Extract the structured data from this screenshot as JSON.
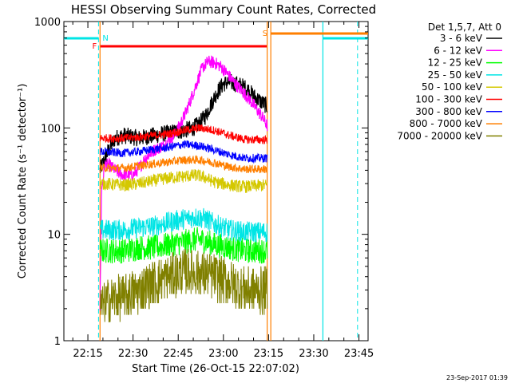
{
  "chart_data": {
    "type": "line",
    "title": "HESSI Observing Summary Count Rates, Corrected",
    "xlabel": "Start Time (26-Oct-15 22:07:02)",
    "ylabel": "Corrected Count Rate (s⁻¹ detector⁻¹)",
    "y_scale": "log",
    "ylim": [
      1,
      1000
    ],
    "x_unit": "minutes after 22:07:02 UT",
    "xlim": [
      0,
      101
    ],
    "x_tick_labels": [
      "22:15",
      "22:30",
      "22:45",
      "23:00",
      "23:15",
      "23:30",
      "23:45"
    ],
    "y_tick_labels": [
      "1",
      "10",
      "100",
      "1000"
    ],
    "legend_title": "Det 1,5,7, Att 0",
    "legend_position": "right, outside plot",
    "footer_timestamp": "23-Sep-2017 01:39",
    "data_interval": [
      12.0,
      67.5
    ],
    "flags": {
      "N": {
        "label": "N",
        "color": "#00e5e5"
      },
      "F": {
        "label": "F",
        "color": "#ff0000"
      },
      "S": {
        "label": "S",
        "color": "#ff7f00"
      }
    },
    "series": [
      {
        "name": "3 - 6 keV",
        "color": "#000000",
        "noise": 0.08,
        "x": [
          12,
          14,
          17,
          20,
          25,
          30,
          35,
          40,
          43,
          45,
          47,
          49,
          51,
          53,
          55,
          57,
          59,
          61,
          63,
          65,
          67.5
        ],
        "values": [
          40,
          55,
          80,
          85,
          80,
          85,
          90,
          95,
          100,
          110,
          130,
          170,
          220,
          260,
          270,
          260,
          250,
          230,
          200,
          180,
          160
        ]
      },
      {
        "name": "6 - 12 keV",
        "color": "#ff00ff",
        "noise": 0.06,
        "x": [
          12,
          12.5,
          13.5,
          15,
          18,
          20,
          23,
          25,
          27,
          30,
          33,
          35,
          37,
          38,
          40,
          42,
          44,
          46,
          48,
          50,
          52,
          54,
          56,
          58,
          60,
          62,
          64,
          66,
          67.5
        ],
        "values": [
          2,
          25,
          45,
          45,
          38,
          36,
          36,
          42,
          52,
          62,
          68,
          78,
          88,
          100,
          130,
          180,
          260,
          370,
          420,
          410,
          380,
          330,
          280,
          240,
          210,
          180,
          150,
          125,
          105
        ]
      },
      {
        "name": "12 - 25 keV",
        "color": "#00ff00",
        "noise": 0.12,
        "x": [
          12,
          20,
          25,
          30,
          35,
          40,
          45,
          50,
          55,
          60,
          67.5
        ],
        "values": [
          7,
          7,
          7.5,
          7.5,
          8,
          8.5,
          9,
          8,
          7.5,
          7,
          7
        ]
      },
      {
        "name": "25 - 50 keV",
        "color": "#00e5e5",
        "noise": 0.1,
        "x": [
          12,
          20,
          25,
          30,
          35,
          40,
          44,
          47,
          50,
          55,
          60,
          67.5
        ],
        "values": [
          11,
          11,
          11.5,
          12,
          13,
          14,
          14.5,
          14,
          12.5,
          11,
          10.5,
          10.5
        ]
      },
      {
        "name": "50 - 100 keV",
        "color": "#d4c800",
        "noise": 0.06,
        "x": [
          12,
          20,
          25,
          30,
          35,
          40,
          44,
          47,
          50,
          55,
          60,
          67.5
        ],
        "values": [
          30,
          29,
          30,
          32,
          34,
          35,
          36,
          34,
          31,
          29,
          28,
          29
        ]
      },
      {
        "name": "100 - 300 keV",
        "color": "#ff0000",
        "noise": 0.04,
        "x": [
          12,
          20,
          25,
          30,
          35,
          40,
          45,
          50,
          55,
          60,
          67.5
        ],
        "values": [
          80,
          80,
          82,
          85,
          88,
          95,
          100,
          95,
          85,
          78,
          77
        ]
      },
      {
        "name": "300 - 800 keV",
        "color": "#0000ff",
        "noise": 0.04,
        "x": [
          12,
          20,
          25,
          30,
          35,
          40,
          45,
          50,
          55,
          60,
          67.5
        ],
        "values": [
          60,
          58,
          60,
          63,
          66,
          70,
          68,
          62,
          56,
          52,
          52
        ]
      },
      {
        "name": "800 - 7000 keV",
        "color": "#ff7f00",
        "noise": 0.04,
        "x": [
          12,
          20,
          25,
          30,
          35,
          40,
          45,
          50,
          55,
          60,
          67.5
        ],
        "values": [
          42,
          42,
          44,
          46,
          48,
          50,
          50,
          47,
          43,
          41,
          41
        ]
      },
      {
        "name": "7000 - 20000 keV",
        "color": "#808000",
        "noise": 0.22,
        "x": [
          12,
          15,
          20,
          25,
          30,
          35,
          40,
          45,
          50,
          55,
          60,
          67.5
        ],
        "values": [
          2,
          2.4,
          2.6,
          3.0,
          3.5,
          4.0,
          4.5,
          4.3,
          4.0,
          3.5,
          3.0,
          3.0
        ]
      }
    ]
  }
}
